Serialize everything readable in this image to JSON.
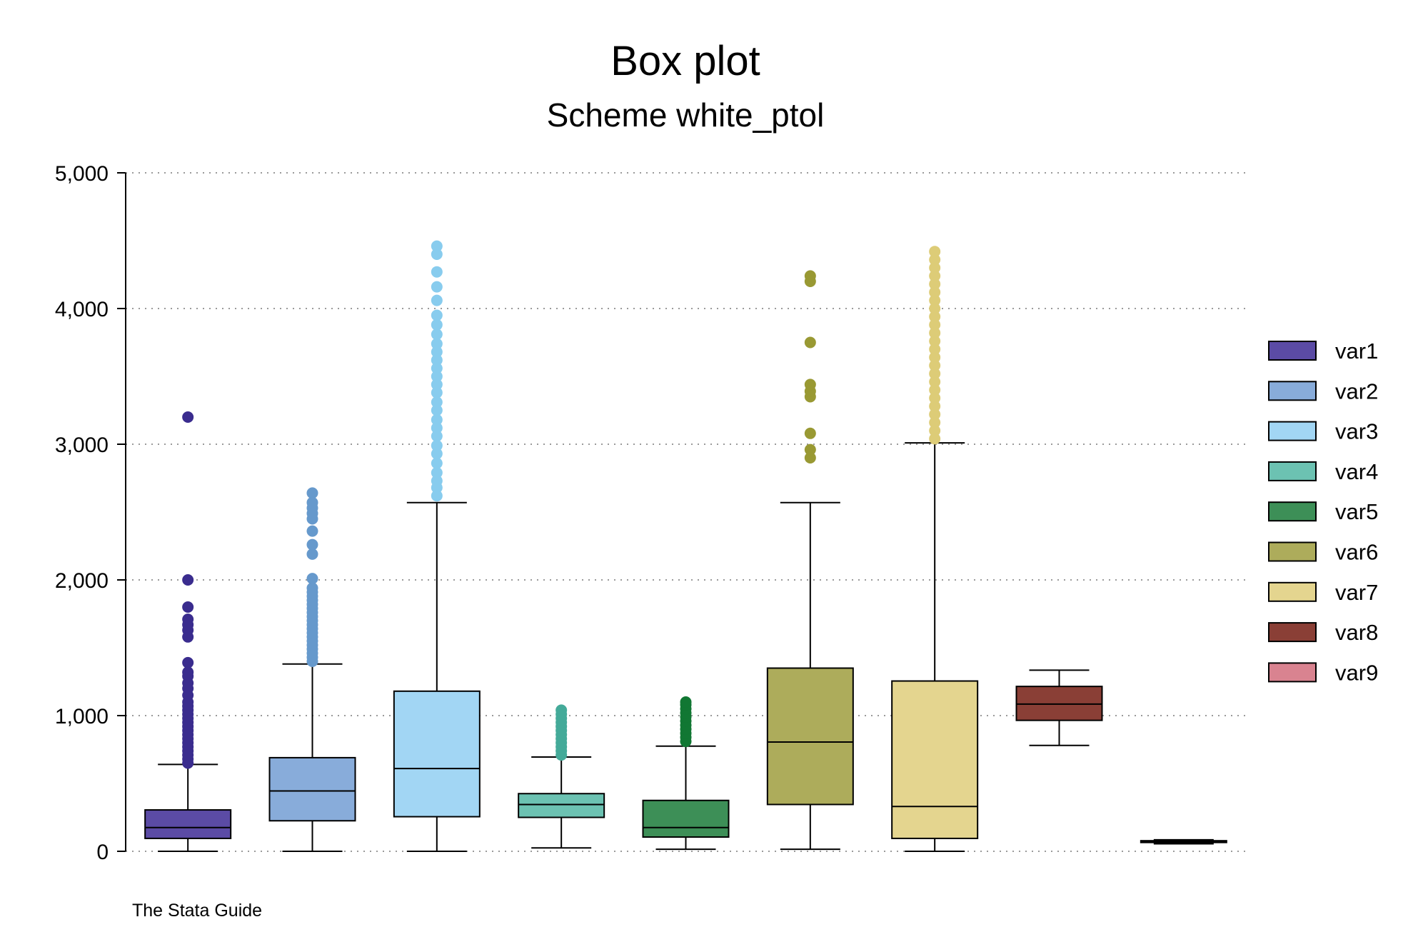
{
  "chart_data": {
    "type": "box",
    "title": "Box plot",
    "subtitle": "Scheme white_ptol",
    "note": "The Stata Guide",
    "ylim": [
      0,
      5000
    ],
    "yticks": [
      0,
      1000,
      2000,
      3000,
      4000,
      5000
    ],
    "ytick_labels": [
      "0",
      "1,000",
      "2,000",
      "3,000",
      "4,000",
      "5,000"
    ],
    "grid": true,
    "legend_position": "right",
    "series": [
      {
        "name": "var1",
        "fill": "#5B4BA5",
        "dot": "#3A2C8E",
        "min": 0,
        "q1": 95,
        "median": 175,
        "q3": 305,
        "max": 640,
        "outliers": [
          650,
          680,
          710,
          740,
          770,
          800,
          830,
          860,
          890,
          920,
          950,
          980,
          1010,
          1040,
          1070,
          1100,
          1150,
          1200,
          1240,
          1290,
          1320,
          1390,
          1580,
          1630,
          1670,
          1710,
          1800,
          2000,
          3200
        ]
      },
      {
        "name": "var2",
        "fill": "#88ACDA",
        "dot": "#6699CC",
        "min": 0,
        "q1": 225,
        "median": 445,
        "q3": 690,
        "max": 1380,
        "outliers": [
          1400,
          1430,
          1460,
          1490,
          1520,
          1550,
          1580,
          1610,
          1640,
          1670,
          1700,
          1730,
          1760,
          1790,
          1820,
          1850,
          1880,
          1910,
          1940,
          2010,
          2190,
          2260,
          2360,
          2450,
          2490,
          2530,
          2570,
          2640
        ]
      },
      {
        "name": "var3",
        "fill": "#A2D6F4",
        "dot": "#88CCEE",
        "min": 0,
        "q1": 255,
        "median": 610,
        "q3": 1180,
        "max": 2570,
        "outliers": [
          2620,
          2680,
          2730,
          2790,
          2860,
          2930,
          2990,
          3060,
          3120,
          3180,
          3250,
          3310,
          3380,
          3440,
          3500,
          3560,
          3620,
          3680,
          3740,
          3810,
          3880,
          3950,
          4060,
          4160,
          4270,
          4400,
          4460
        ]
      },
      {
        "name": "var4",
        "fill": "#6CC2B2",
        "dot": "#44AA99",
        "min": 25,
        "q1": 250,
        "median": 345,
        "q3": 425,
        "max": 695,
        "outliers": [
          710,
          740,
          770,
          800,
          830,
          860,
          890,
          920,
          950,
          980,
          1010,
          1040
        ]
      },
      {
        "name": "var5",
        "fill": "#3D8F57",
        "dot": "#117733",
        "min": 15,
        "q1": 105,
        "median": 175,
        "q3": 375,
        "max": 775,
        "outliers": [
          810,
          840,
          870,
          900,
          930,
          960,
          990,
          1020,
          1050,
          1080,
          1100
        ]
      },
      {
        "name": "var6",
        "fill": "#ADAC5B",
        "dot": "#999933",
        "min": 15,
        "q1": 345,
        "median": 805,
        "q3": 1350,
        "max": 2570,
        "outliers": [
          2900,
          2960,
          3080,
          3350,
          3390,
          3440,
          3750,
          4200,
          4240
        ]
      },
      {
        "name": "var7",
        "fill": "#E4D58F",
        "dot": "#DDCC77",
        "min": 0,
        "q1": 95,
        "median": 330,
        "q3": 1255,
        "max": 3010,
        "outliers": [
          3040,
          3100,
          3160,
          3220,
          3280,
          3340,
          3400,
          3460,
          3520,
          3580,
          3640,
          3700,
          3760,
          3820,
          3880,
          3940,
          4000,
          4060,
          4120,
          4180,
          4240,
          4300,
          4360,
          4420
        ]
      },
      {
        "name": "var8",
        "fill": "#8A3F36",
        "dot": "#882255",
        "min": 780,
        "q1": 965,
        "median": 1085,
        "q3": 1215,
        "max": 1335,
        "outliers": []
      },
      {
        "name": "var9",
        "fill": "#D98390",
        "dot": "#CC6677",
        "min": 55,
        "q1": 65,
        "median": 70,
        "q3": 78,
        "max": 85,
        "outliers": []
      }
    ]
  }
}
